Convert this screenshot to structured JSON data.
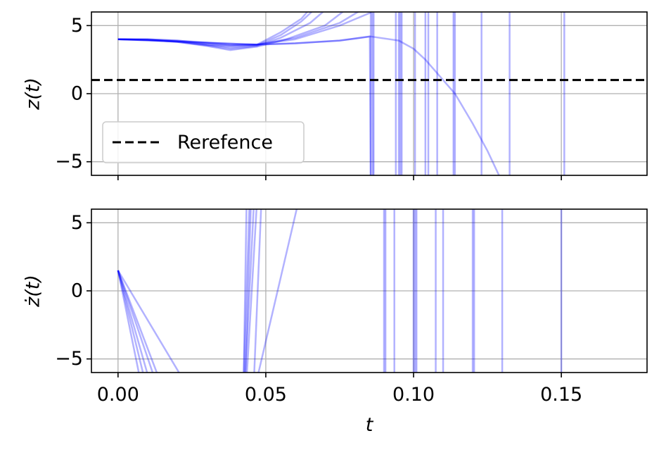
{
  "chart_data": [
    {
      "type": "line",
      "title": "",
      "xlabel": "",
      "ylabel": "z(t)",
      "xlim": [
        -0.009,
        0.179
      ],
      "ylim": [
        -6,
        6
      ],
      "grid": true,
      "legend": {
        "placement": "lower-left",
        "entries": [
          "Rerefence"
        ]
      },
      "x_ticks": [
        0.0,
        0.05,
        0.1,
        0.15
      ],
      "y_ticks": [
        -5,
        0,
        5
      ],
      "y_tick_labels": [
        "−5",
        "0",
        "5"
      ],
      "colors": {
        "trajectories": "#0000ff",
        "reference": "#000000"
      },
      "reference": {
        "name": "Rerefence",
        "y": 1.0,
        "style": "dashed"
      },
      "trajectories": [
        {
          "x": [
            0,
            0.01,
            0.02,
            0.03,
            0.038,
            0.047,
            0.055,
            0.062,
            0.066
          ],
          "y": [
            4.0,
            4.0,
            3.9,
            3.75,
            3.6,
            3.6,
            4.5,
            5.5,
            6.5
          ]
        },
        {
          "x": [
            0,
            0.01,
            0.02,
            0.03,
            0.038,
            0.047,
            0.055,
            0.062,
            0.068
          ],
          "y": [
            4.0,
            3.95,
            3.85,
            3.6,
            3.4,
            3.55,
            4.3,
            5.3,
            6.5
          ]
        },
        {
          "x": [
            0,
            0.01,
            0.02,
            0.03,
            0.038,
            0.047,
            0.055,
            0.065,
            0.072
          ],
          "y": [
            4.0,
            3.95,
            3.8,
            3.55,
            3.3,
            3.5,
            4.1,
            5.2,
            6.5
          ]
        },
        {
          "x": [
            0,
            0.01,
            0.02,
            0.03,
            0.038,
            0.047,
            0.057,
            0.07,
            0.079
          ],
          "y": [
            4.0,
            3.95,
            3.8,
            3.5,
            3.2,
            3.45,
            4.0,
            5.0,
            6.5
          ]
        },
        {
          "x": [
            0,
            0.01,
            0.02,
            0.03,
            0.038,
            0.047,
            0.06,
            0.075,
            0.085
          ],
          "y": [
            4.0,
            3.95,
            3.85,
            3.6,
            3.5,
            3.6,
            4.1,
            5.2,
            6.5
          ]
        },
        {
          "x": [
            0,
            0.01,
            0.02,
            0.03,
            0.038,
            0.047,
            0.06,
            0.075,
            0.086,
            0.0862
          ],
          "y": [
            4.0,
            4.0,
            3.9,
            3.7,
            3.55,
            3.6,
            4.0,
            5.0,
            6.0,
            -6.5
          ]
        },
        {
          "x": [
            0,
            0.047,
            0.06,
            0.075,
            0.0852,
            0.0855
          ],
          "y": [
            4.0,
            3.6,
            3.7,
            3.9,
            4.2,
            -6.5
          ]
        },
        {
          "x": [
            0,
            0.047,
            0.06,
            0.075,
            0.0855,
            0.095,
            0.1,
            0.104,
            0.114,
            0.12,
            0.125,
            0.13
          ],
          "y": [
            4.0,
            3.6,
            3.7,
            3.9,
            4.2,
            3.9,
            3.3,
            2.5,
            0.0,
            -2.2,
            -4.2,
            -6.5
          ]
        }
      ],
      "vertical_spikes_x": [
        0.0855,
        0.0865,
        0.094,
        0.095,
        0.0955,
        0.096,
        0.1005,
        0.104,
        0.105,
        0.108,
        0.1135,
        0.114,
        0.123,
        0.1325,
        0.151
      ]
    },
    {
      "type": "line",
      "title": "",
      "xlabel": "t",
      "ylabel": "ż(t)",
      "xlim": [
        -0.009,
        0.179
      ],
      "ylim": [
        -6,
        6
      ],
      "grid": true,
      "x_ticks": [
        0.0,
        0.05,
        0.1,
        0.15
      ],
      "x_tick_labels": [
        "0.00",
        "0.05",
        "0.10",
        "0.15"
      ],
      "y_ticks": [
        -5,
        0,
        5
      ],
      "y_tick_labels": [
        "−5",
        "0",
        "5"
      ],
      "colors": {
        "trajectories": "#0000ff"
      },
      "trajectories": [
        {
          "x": [
            0,
            0.0075
          ],
          "y": [
            1.5,
            -6.5
          ]
        },
        {
          "x": [
            0,
            0.009
          ],
          "y": [
            1.5,
            -6.5
          ]
        },
        {
          "x": [
            0,
            0.0105
          ],
          "y": [
            1.5,
            -6.5
          ]
        },
        {
          "x": [
            0,
            0.0125
          ],
          "y": [
            1.5,
            -6.5
          ]
        },
        {
          "x": [
            0,
            0.014
          ],
          "y": [
            1.5,
            -6.5
          ]
        },
        {
          "x": [
            0,
            0.022
          ],
          "y": [
            1.5,
            -6.5
          ]
        },
        {
          "x": [
            0.0425,
            0.0435
          ],
          "y": [
            -6.5,
            6.5
          ]
        },
        {
          "x": [
            0.0425,
            0.0445
          ],
          "y": [
            -6.5,
            6.5
          ]
        },
        {
          "x": [
            0.043,
            0.045
          ],
          "y": [
            -6.5,
            6.5
          ]
        },
        {
          "x": [
            0.043,
            0.046
          ],
          "y": [
            -6.5,
            6.5
          ]
        },
        {
          "x": [
            0.0435,
            0.047
          ],
          "y": [
            -6.5,
            6.5
          ]
        },
        {
          "x": [
            0.046,
            0.0485
          ],
          "y": [
            -6.5,
            6.5
          ]
        },
        {
          "x": [
            0.047,
            0.061
          ],
          "y": [
            -6.5,
            6.5
          ]
        }
      ],
      "vertical_spikes_x": [
        0.09,
        0.0905,
        0.0935,
        0.1,
        0.1005,
        0.101,
        0.1075,
        0.11,
        0.12,
        0.1205,
        0.13,
        0.15
      ]
    }
  ]
}
